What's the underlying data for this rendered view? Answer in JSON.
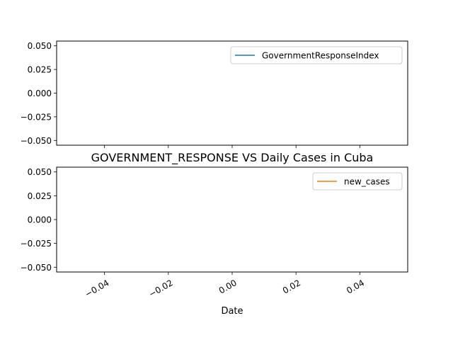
{
  "chart_data": [
    {
      "type": "line",
      "title": "",
      "xlabel": "",
      "ylabel": "",
      "xlim": [
        -0.055,
        0.055
      ],
      "ylim": [
        -0.055,
        0.055
      ],
      "y_ticks": [
        0.05,
        0.025,
        0.0,
        -0.025,
        -0.05
      ],
      "y_tick_labels": [
        "0.050",
        "0.025",
        "0.000",
        "−0.025",
        "−0.050"
      ],
      "x_ticks": [
        -0.04,
        -0.02,
        0.0,
        0.02,
        0.04
      ],
      "x_tick_labels": [],
      "grid": false,
      "legend": "top-right",
      "series": [
        {
          "name": "GovernmentResponseIndex",
          "color": "#1f77b4",
          "x": [],
          "y": []
        }
      ]
    },
    {
      "type": "line",
      "title": "GOVERNMENT_RESPONSE VS Daily Cases in Cuba",
      "xlabel": "Date",
      "ylabel": "",
      "xlim": [
        -0.055,
        0.055
      ],
      "ylim": [
        -0.055,
        0.055
      ],
      "y_ticks": [
        0.05,
        0.025,
        0.0,
        -0.025,
        -0.05
      ],
      "y_tick_labels": [
        "0.050",
        "0.025",
        "0.000",
        "−0.025",
        "−0.050"
      ],
      "x_ticks": [
        -0.04,
        -0.02,
        0.0,
        0.02,
        0.04
      ],
      "x_tick_labels": [
        "−0.04",
        "−0.02",
        "0.00",
        "0.02",
        "0.04"
      ],
      "grid": false,
      "legend": "top-right",
      "series": [
        {
          "name": "new_cases",
          "color": "#ff7f0e",
          "x": [],
          "y": []
        }
      ]
    }
  ]
}
